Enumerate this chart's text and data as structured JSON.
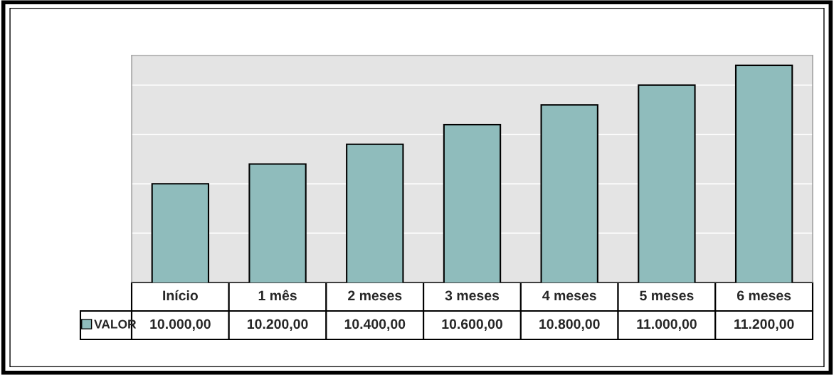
{
  "chart_data": {
    "type": "bar",
    "categories": [
      "Início",
      "1 mês",
      "2 meses",
      "3 meses",
      "4 meses",
      "5 meses",
      "6 meses"
    ],
    "series": [
      {
        "name": "VALOR",
        "color": "#8fbcbc",
        "values": [
          10000,
          10200,
          10400,
          10600,
          10800,
          11000,
          11200
        ],
        "value_labels": [
          "10.000,00",
          "10.200,00",
          "10.400,00",
          "10.600,00",
          "10.800,00",
          "11.000,00",
          "11.200,00"
        ]
      }
    ],
    "ylim": [
      9000,
      11300
    ],
    "yticks": [
      {
        "value": 9500,
        "label": null
      },
      {
        "value": 10000,
        "label": null
      },
      {
        "value": 10500,
        "label": null
      },
      {
        "value": 11000,
        "label": null
      }
    ],
    "grid": "y",
    "tick_labels": "x",
    "legend": "bottom"
  }
}
